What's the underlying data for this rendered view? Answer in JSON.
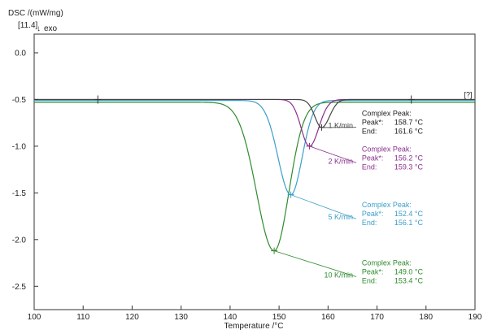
{
  "chart_data": {
    "type": "line",
    "ylabel": "DSC /(mW/mg)",
    "ylabel_sub": "[11.4]",
    "exo_label": "exo",
    "xlabel": "Temperature /°C",
    "x_ticks": [
      "100",
      "110",
      "120",
      "130",
      "140",
      "150",
      "160",
      "170",
      "180",
      "190"
    ],
    "y_ticks": [
      "0.0",
      "-0.5",
      "-1.0",
      "-1.5",
      "-2.0",
      "-2.5"
    ],
    "xlim": [
      100,
      190
    ],
    "ylim": [
      -2.75,
      0.2
    ],
    "grid": false,
    "end_marker_label": "[?]",
    "series": [
      {
        "name": "1 K/min",
        "color": "#444444",
        "baseline": -0.5,
        "peak_x": 158.7,
        "peak_y": -0.8,
        "width_left": 1.4,
        "width_right": 1.6,
        "x": [
          100,
          152,
          155,
          157,
          158.7,
          160,
          161.6,
          163,
          190
        ],
        "y": [
          -0.5,
          -0.51,
          -0.6,
          -0.74,
          -0.8,
          -0.72,
          -0.58,
          -0.52,
          -0.51
        ]
      },
      {
        "name": "2 K/min",
        "color": "#8b2f8b",
        "baseline": -0.5,
        "peak_x": 156.2,
        "peak_y": -1.0,
        "width_left": 1.7,
        "width_right": 1.9,
        "x": [
          100,
          150,
          153,
          155,
          156.2,
          157.5,
          159.3,
          161,
          190
        ],
        "y": [
          -0.5,
          -0.51,
          -0.65,
          -0.9,
          -1.0,
          -0.9,
          -0.65,
          -0.52,
          -0.51
        ]
      },
      {
        "name": "5 K/min",
        "color": "#3b9fc7",
        "baseline": -0.51,
        "peak_x": 152.4,
        "peak_y": -1.52,
        "width_left": 2.6,
        "width_right": 2.3,
        "x": [
          100,
          144,
          148,
          150,
          152.4,
          154,
          156.1,
          158,
          190
        ],
        "y": [
          -0.5,
          -0.53,
          -0.75,
          -1.2,
          -1.52,
          -1.3,
          -0.8,
          -0.55,
          -0.51
        ]
      },
      {
        "name": "10 K/min",
        "color": "#2e8b2e",
        "baseline": -0.53,
        "peak_x": 149.0,
        "peak_y": -2.12,
        "width_left": 3.6,
        "width_right": 3.0,
        "x": [
          100,
          138,
          143,
          146,
          149.0,
          151,
          153.4,
          156,
          190
        ],
        "y": [
          -0.5,
          -0.55,
          -0.9,
          -1.6,
          -2.12,
          -1.8,
          -1.0,
          -0.6,
          -0.52
        ]
      }
    ],
    "annotations": [
      {
        "series_label": "1 K/min",
        "color": "#222222",
        "title": "Complex Peak:",
        "peak_label": "Peak*:",
        "peak_value": "158.7 °C",
        "end_label": "End:",
        "end_value": "161.6 °C"
      },
      {
        "series_label": "2 K/min",
        "color": "#8b2f8b",
        "title": "Complex Peak:",
        "peak_label": "Peak*:",
        "peak_value": "156.2 °C",
        "end_label": "End:",
        "end_value": "159.3 °C"
      },
      {
        "series_label": "5 K/min",
        "color": "#3b9fc7",
        "title": "Complex Peak:",
        "peak_label": "Peak*:",
        "peak_value": "152.4 °C",
        "end_label": "End:",
        "end_value": "156.1 °C"
      },
      {
        "series_label": "10 K/min",
        "color": "#2e8b2e",
        "title": "Complex Peak:",
        "peak_label": "Peak*:",
        "peak_value": "149.0 °C",
        "end_label": "End:",
        "end_value": "153.4 °C"
      }
    ]
  }
}
